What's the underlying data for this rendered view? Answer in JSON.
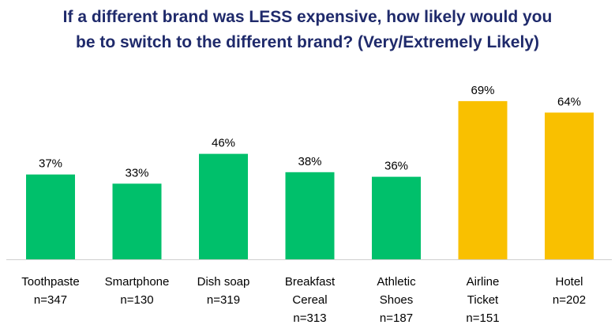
{
  "chart_data": {
    "type": "bar",
    "title_lines": [
      "If a different brand was LESS expensive, how likely would you",
      "be to switch to the different brand? (Very/Extremely Likely)"
    ],
    "categories": [
      {
        "lines": [
          "Toothpaste",
          "n=347"
        ]
      },
      {
        "lines": [
          "Smartphone",
          "n=130"
        ]
      },
      {
        "lines": [
          "Dish soap",
          "n=319"
        ]
      },
      {
        "lines": [
          "Breakfast",
          "Cereal",
          "n=313"
        ]
      },
      {
        "lines": [
          "Athletic",
          "Shoes",
          "n=187"
        ]
      },
      {
        "lines": [
          "Airline",
          "Ticket",
          "n=151"
        ]
      },
      {
        "lines": [
          "Hotel",
          "n=202"
        ]
      }
    ],
    "values": [
      37,
      33,
      46,
      38,
      36,
      69,
      64
    ],
    "value_labels": [
      "37%",
      "33%",
      "46%",
      "38%",
      "36%",
      "69%",
      "64%"
    ],
    "bar_colors": [
      "#00c06b",
      "#00c06b",
      "#00c06b",
      "#00c06b",
      "#00c06b",
      "#f9c000",
      "#f9c000"
    ],
    "ylim": [
      0,
      100
    ],
    "grid": false,
    "legend": "none"
  }
}
